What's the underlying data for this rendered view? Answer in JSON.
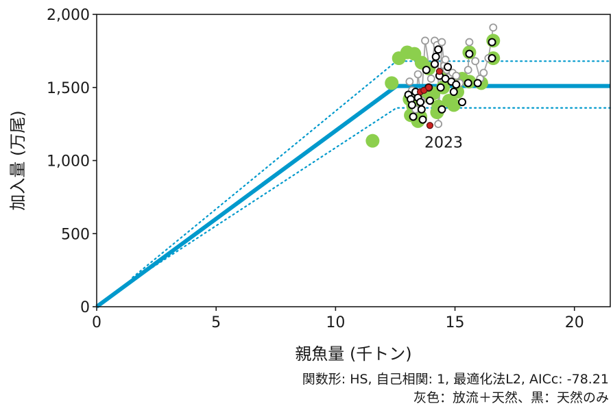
{
  "chart_data": {
    "type": "scatter",
    "title": "",
    "xlabel": "親魚量 (千トン)",
    "ylabel": "加入量 (万尾)",
    "xlim": [
      0,
      21.5
    ],
    "ylim": [
      0,
      2000
    ],
    "x_ticks": [
      0,
      5,
      10,
      15,
      20
    ],
    "x_tick_labels": [
      "0",
      "5",
      "10",
      "15",
      "20"
    ],
    "y_ticks": [
      0,
      500,
      1000,
      1500,
      2000
    ],
    "y_tick_labels": [
      "0",
      "500",
      "1,000",
      "1,500",
      "2,000"
    ],
    "grid": false,
    "colors": {
      "fit": "#0099cc",
      "green": "#8ccf4d",
      "gray": "#9a9a9a",
      "black": "#000000",
      "red": "#cc2222"
    },
    "hs_fit": {
      "breakpoint": [
        12.55,
        1510
      ],
      "plateau": 1510
    },
    "interval_upper": [
      [
        1.5,
        200
      ],
      [
        12.55,
        1680
      ],
      [
        21.5,
        1680
      ]
    ],
    "interval_lower": [
      [
        1.5,
        180
      ],
      [
        12.55,
        1360
      ],
      [
        21.5,
        1360
      ]
    ],
    "annotation": "2023",
    "annotation_point": [
      13.95,
      1240
    ],
    "series": [
      {
        "values": [
          [
            11.55,
            1135
          ],
          [
            12.35,
            1530
          ],
          [
            12.65,
            1700
          ],
          [
            13.0,
            1740
          ],
          [
            13.3,
            1730
          ],
          [
            13.6,
            1670
          ],
          [
            13.9,
            1630
          ],
          [
            13.1,
            1420
          ],
          [
            13.25,
            1370
          ],
          [
            13.15,
            1310
          ],
          [
            13.55,
            1300
          ],
          [
            13.45,
            1270
          ],
          [
            13.9,
            1440
          ],
          [
            14.1,
            1460
          ],
          [
            14.3,
            1370
          ],
          [
            14.25,
            1330
          ],
          [
            14.5,
            1500
          ],
          [
            14.75,
            1410
          ],
          [
            14.95,
            1380
          ],
          [
            15.1,
            1470
          ],
          [
            15.3,
            1560
          ],
          [
            15.6,
            1740
          ],
          [
            15.6,
            1540
          ],
          [
            16.1,
            1530
          ],
          [
            16.6,
            1820
          ],
          [
            16.6,
            1700
          ],
          [
            14.65,
            1590
          ]
        ]
      },
      {
        "values": [
          [
            13.1,
            1540
          ],
          [
            13.2,
            1480
          ],
          [
            13.3,
            1440
          ],
          [
            13.35,
            1350
          ],
          [
            13.45,
            1590
          ],
          [
            13.6,
            1410
          ],
          [
            13.75,
            1820
          ],
          [
            14.0,
            1560
          ],
          [
            14.15,
            1820
          ],
          [
            14.25,
            1790
          ],
          [
            14.3,
            1760
          ],
          [
            14.45,
            1810
          ],
          [
            14.55,
            1650
          ],
          [
            14.6,
            1690
          ],
          [
            14.65,
            1620
          ],
          [
            14.75,
            1570
          ],
          [
            14.9,
            1600
          ],
          [
            15.05,
            1580
          ],
          [
            15.2,
            1530
          ],
          [
            15.55,
            1620
          ],
          [
            15.6,
            1810
          ],
          [
            15.85,
            1680
          ],
          [
            16.05,
            1560
          ],
          [
            16.2,
            1600
          ],
          [
            16.4,
            1700
          ],
          [
            16.6,
            1910
          ],
          [
            14.3,
            1250
          ]
        ]
      },
      {
        "values": [
          [
            13.05,
            1450
          ],
          [
            13.15,
            1420
          ],
          [
            13.2,
            1380
          ],
          [
            13.25,
            1300
          ],
          [
            13.35,
            1470
          ],
          [
            13.45,
            1430
          ],
          [
            13.55,
            1400
          ],
          [
            13.6,
            1350
          ],
          [
            13.65,
            1280
          ],
          [
            13.8,
            1620
          ],
          [
            13.9,
            1500
          ],
          [
            13.95,
            1410
          ],
          [
            14.15,
            1660
          ],
          [
            14.2,
            1710
          ],
          [
            14.3,
            1760
          ],
          [
            14.35,
            1580
          ],
          [
            14.4,
            1500
          ],
          [
            14.45,
            1350
          ],
          [
            14.6,
            1560
          ],
          [
            14.7,
            1640
          ],
          [
            14.85,
            1540
          ],
          [
            14.95,
            1470
          ],
          [
            15.05,
            1520
          ],
          [
            15.3,
            1400
          ],
          [
            15.6,
            1730
          ],
          [
            16.55,
            1810
          ],
          [
            16.55,
            1700
          ],
          [
            15.95,
            1530
          ],
          [
            15.55,
            1530
          ]
        ]
      },
      {
        "values": [
          [
            13.55,
            1470
          ],
          [
            13.7,
            1480
          ],
          [
            13.9,
            1500
          ],
          [
            14.35,
            1610
          ],
          [
            13.95,
            1240
          ]
        ]
      }
    ]
  },
  "footer": {
    "line1": "関数形: HS, 自己相関: 1, 最適化法L2, AICc: -78.21",
    "line2": "灰色：放流＋天然、黒：天然のみ"
  }
}
